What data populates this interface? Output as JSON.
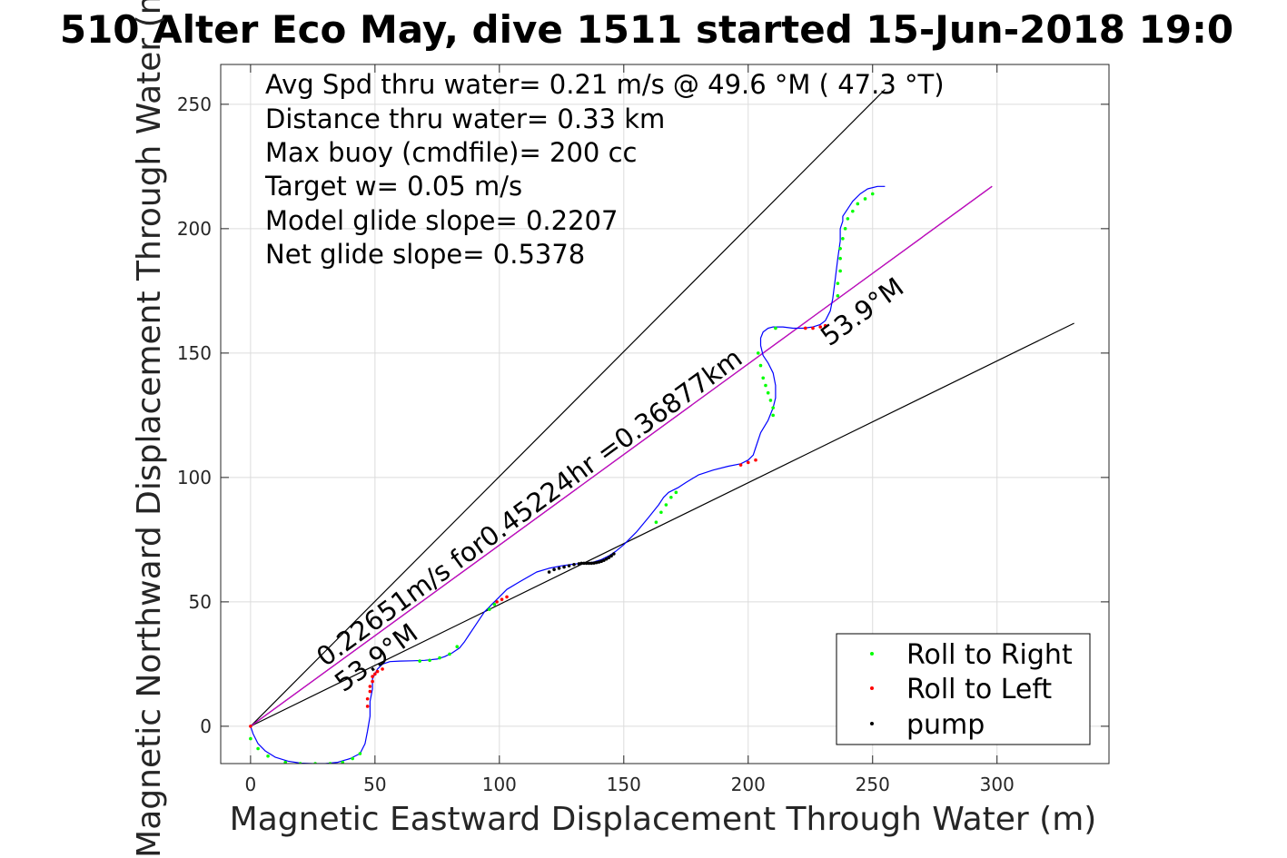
{
  "chart_data": {
    "type": "scatter",
    "title": "510 Alter Eco May, dive 1511 started 15-Jun-2018 19:0",
    "xlabel": "Magnetic Eastward Displacement Through Water (m)",
    "ylabel": "Magnetic Northward Displacement Through Water (m)",
    "xlim": [
      -12,
      345
    ],
    "ylim": [
      -15,
      266
    ],
    "x_ticks": [
      0,
      50,
      100,
      150,
      200,
      250,
      300
    ],
    "y_ticks": [
      0,
      50,
      100,
      150,
      200,
      250
    ],
    "x_tick_labels": [
      "0",
      "50",
      "100",
      "150",
      "200",
      "250",
      "300"
    ],
    "y_tick_labels": [
      "0",
      "50",
      "100",
      "150",
      "200",
      "250"
    ],
    "grid": true,
    "legend_position": "bottom-right",
    "stats_text": [
      "Avg Spd thru water=  0.21 m/s @  49.6 °M ( 47.3 °T)",
      "Distance thru water=  0.33 km",
      "Max buoy (cmdfile)= 200 cc",
      "Target w= 0.05 m/s",
      "Model glide slope= 0.2207",
      "Net glide slope= 0.5378"
    ],
    "line_annotations": {
      "speed_label": "0.22651m/s for0.45224hr =0.36877km",
      "heading_label_upper": "53.9°M",
      "heading_label_lower": "53.9°M"
    },
    "reference_lines": [
      {
        "role": "upper-bound",
        "color": "#000000",
        "x": [
          0,
          255
        ],
        "y": [
          0,
          256
        ]
      },
      {
        "role": "lower-bound",
        "color": "#000000",
        "x": [
          0,
          331
        ],
        "y": [
          0,
          162
        ]
      },
      {
        "role": "heading",
        "color": "#000000",
        "x": [
          0,
          298
        ],
        "y": [
          0,
          217
        ]
      },
      {
        "role": "heading-overlay",
        "color": "#cc00cc",
        "x": [
          0,
          298
        ],
        "y": [
          0,
          217
        ]
      }
    ],
    "track": {
      "color": "#0000ff",
      "x": [
        0,
        1,
        3,
        6,
        10,
        15,
        20,
        25,
        30,
        35,
        40,
        44,
        46,
        47,
        48,
        48,
        49,
        49,
        50,
        51,
        53,
        56,
        60,
        65,
        70,
        75,
        78,
        81,
        84,
        86,
        88,
        90,
        92,
        94,
        96,
        97,
        98,
        100,
        103,
        108,
        115,
        120,
        125,
        130,
        135,
        138,
        141,
        144,
        147,
        150,
        155,
        160,
        164,
        166,
        168,
        170,
        172,
        175,
        180,
        186,
        192,
        197,
        200,
        202,
        203,
        205,
        208,
        210,
        211,
        211,
        210,
        208,
        206,
        205,
        205,
        206,
        208,
        210,
        214,
        218,
        222,
        226,
        229,
        231,
        233,
        234,
        235,
        236,
        237,
        237,
        238,
        238,
        240,
        242,
        245,
        248,
        252,
        255
      ],
      "y": [
        0,
        -3,
        -7,
        -10,
        -12.5,
        -14,
        -14.8,
        -15,
        -15,
        -14.5,
        -13,
        -11,
        -7,
        -2,
        4,
        10,
        15,
        19,
        21,
        23,
        25,
        26,
        26.2,
        26.3,
        26.5,
        27,
        28,
        29.5,
        31.5,
        34,
        37,
        40,
        43,
        46,
        48,
        49,
        50,
        52,
        55,
        58,
        62,
        63.5,
        64.5,
        65.2,
        65.5,
        66,
        67,
        68.5,
        70.5,
        73,
        78,
        84,
        89,
        92,
        94,
        95,
        96,
        98,
        101,
        103,
        104.5,
        105.5,
        107,
        109,
        112,
        118,
        123,
        128,
        132,
        137,
        142,
        146,
        149,
        153,
        156,
        158.5,
        160,
        160.5,
        160.5,
        160,
        160,
        160.5,
        161.5,
        163,
        167,
        172,
        180,
        188,
        195,
        200,
        203,
        205,
        208,
        211,
        214,
        216,
        217,
        217
      ]
    },
    "series": [
      {
        "name": "Roll to Right",
        "color": "#00ff00",
        "x": [
          0,
          3,
          7,
          14,
          20,
          26,
          32,
          37,
          41,
          44,
          68,
          72,
          76,
          80,
          83,
          96,
          98,
          163,
          165,
          167,
          169,
          171,
          204,
          205,
          206,
          207,
          208,
          209,
          210,
          210,
          211,
          236,
          236,
          237,
          237,
          237,
          238,
          239,
          240,
          242,
          244,
          247,
          250
        ],
        "y": [
          -5,
          -9,
          -12,
          -14.5,
          -15,
          -15,
          -15,
          -14.5,
          -13,
          -11,
          26.2,
          26.5,
          27.5,
          29,
          32,
          47,
          49,
          82,
          86,
          89,
          92,
          94,
          150,
          145,
          140,
          137,
          134,
          131,
          128,
          125,
          160,
          173,
          178,
          183,
          188,
          192,
          196,
          200,
          204,
          207,
          210,
          212,
          214
        ]
      },
      {
        "name": "Roll to Left",
        "color": "#ff0000",
        "x": [
          0,
          47,
          47,
          48,
          48,
          49,
          49,
          50,
          51,
          53,
          99,
          101,
          103,
          197,
          200,
          203,
          223,
          226,
          229,
          231
        ],
        "y": [
          0,
          8,
          11,
          14,
          16,
          18,
          20,
          21,
          22,
          23,
          50,
          51,
          52,
          105,
          106,
          107,
          160,
          160,
          160.5,
          161
        ]
      },
      {
        "name": "pump",
        "color": "#000000",
        "x": [
          120,
          122,
          124,
          126,
          128,
          130,
          132,
          133,
          134,
          135,
          136,
          137,
          138,
          139,
          140,
          141,
          142,
          143,
          144,
          145,
          146
        ],
        "y": [
          62,
          63,
          63.5,
          64,
          64.5,
          65,
          65.3,
          65.5,
          65.5,
          65.5,
          65.5,
          65.5,
          65.6,
          65.8,
          66,
          66.3,
          66.7,
          67.2,
          67.8,
          68.5,
          69.3
        ]
      }
    ],
    "legend": [
      {
        "label": "Roll to Right",
        "color": "#00ff00"
      },
      {
        "label": "Roll to Left",
        "color": "#ff0000"
      },
      {
        "label": "pump",
        "color": "#000000"
      }
    ]
  }
}
